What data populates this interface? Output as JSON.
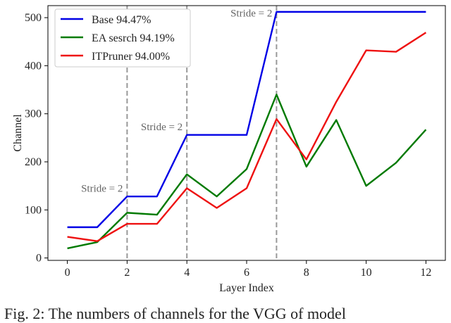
{
  "chart_data": {
    "type": "line",
    "xlabel": "Layer Index",
    "ylabel": "Channel",
    "xlim": [
      -0.65,
      12.65
    ],
    "ylim": [
      -5,
      525
    ],
    "xticks": [
      0,
      2,
      4,
      6,
      8,
      10,
      12
    ],
    "yticks": [
      0,
      100,
      200,
      300,
      400,
      500
    ],
    "x": [
      0,
      1,
      2,
      3,
      4,
      5,
      6,
      7,
      8,
      9,
      10,
      11,
      12
    ],
    "legend_position": "top-left",
    "series": [
      {
        "name": "Base 94.47%",
        "color": "#0000e6",
        "values": [
          64,
          64,
          128,
          128,
          256,
          256,
          256,
          512,
          512,
          512,
          512,
          512,
          512
        ]
      },
      {
        "name": "EA sesrch 94.19%",
        "color": "#007a00",
        "values": [
          20,
          33,
          94,
          90,
          174,
          128,
          185,
          340,
          190,
          287,
          150,
          198,
          267
        ]
      },
      {
        "name": "ITPruner 94.00%",
        "color": "#ee1111",
        "values": [
          44,
          35,
          71,
          71,
          145,
          104,
          145,
          289,
          205,
          325,
          432,
          429,
          469
        ]
      }
    ],
    "annotations": [
      {
        "text": "Stride = 2",
        "x": 2,
        "y": 138
      },
      {
        "text": "Stride = 2",
        "x": 4,
        "y": 266
      },
      {
        "text": "Stride = 2",
        "x": 7,
        "y": 502
      }
    ],
    "vlines": [
      2,
      4,
      7
    ]
  },
  "caption": "Fig. 2: The numbers of channels for the VGG of model"
}
